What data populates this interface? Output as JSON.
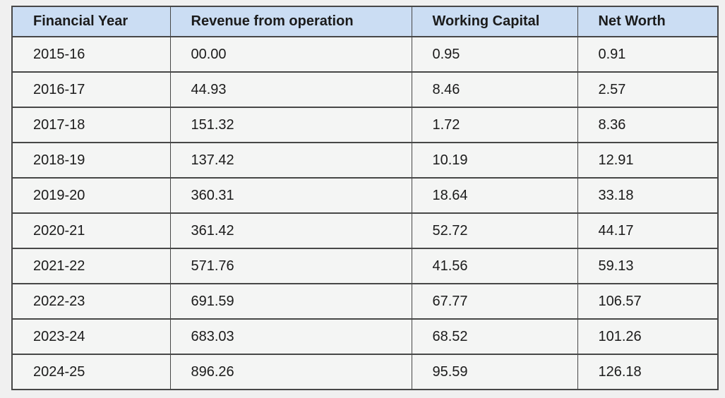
{
  "table": {
    "columns": [
      "Financial Year",
      "Revenue from operation",
      "Working Capital",
      "Net Worth"
    ],
    "rows": [
      [
        "2015-16",
        "00.00",
        "0.95",
        "0.91"
      ],
      [
        "2016-17",
        "44.93",
        "8.46",
        "2.57"
      ],
      [
        "2017-18",
        "151.32",
        "1.72",
        "8.36"
      ],
      [
        "2018-19",
        "137.42",
        "10.19",
        "12.91"
      ],
      [
        "2019-20",
        "360.31",
        "18.64",
        "33.18"
      ],
      [
        "2020-21",
        "361.42",
        "52.72",
        "44.17"
      ],
      [
        "2021-22",
        "571.76",
        "41.56",
        "59.13"
      ],
      [
        "2022-23",
        "691.59",
        "67.77",
        "106.57"
      ],
      [
        "2023-24",
        "683.03",
        "68.52",
        "101.26"
      ],
      [
        "2024-25",
        "896.26",
        "95.59",
        "126.18"
      ]
    ]
  },
  "colors": {
    "header_background": "#cbddf3",
    "cell_background": "#f4f5f4",
    "page_background": "#f0f0f0",
    "border": "#474747",
    "text": "#1b1b1b"
  },
  "chart_data": {
    "type": "table",
    "title": "",
    "categories": [
      "2015-16",
      "2016-17",
      "2017-18",
      "2018-19",
      "2019-20",
      "2020-21",
      "2021-22",
      "2022-23",
      "2023-24",
      "2024-25"
    ],
    "series": [
      {
        "name": "Revenue from operation",
        "values": [
          0.0,
          44.93,
          151.32,
          137.42,
          360.31,
          361.42,
          571.76,
          691.59,
          683.03,
          896.26
        ]
      },
      {
        "name": "Working Capital",
        "values": [
          0.95,
          8.46,
          1.72,
          10.19,
          18.64,
          52.72,
          41.56,
          67.77,
          68.52,
          95.59
        ]
      },
      {
        "name": "Net Worth",
        "values": [
          0.91,
          2.57,
          8.36,
          12.91,
          33.18,
          44.17,
          59.13,
          106.57,
          101.26,
          126.18
        ]
      }
    ],
    "xlabel": "Financial Year",
    "ylabel": "",
    "legend_position": "none",
    "grid": false
  }
}
